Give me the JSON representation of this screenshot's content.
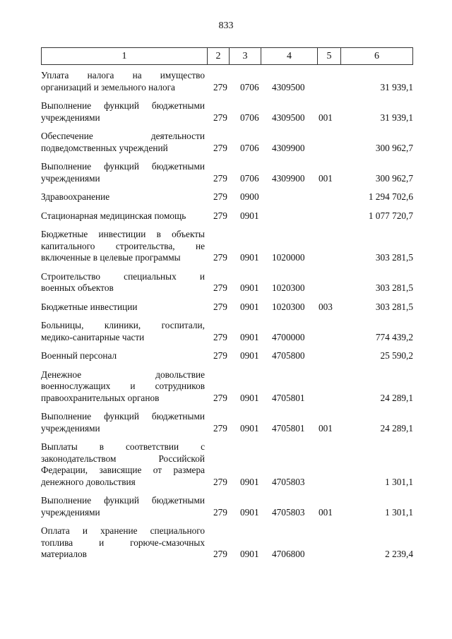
{
  "page_number": "833",
  "header": [
    "1",
    "2",
    "3",
    "4",
    "5",
    "6"
  ],
  "rows": [
    {
      "lines": [
        "Уплата налога на имущество",
        "организаций и земельного налога"
      ],
      "c2": "279",
      "c3": "0706",
      "c4": "4309500",
      "c5": "",
      "c6": "31 939,1"
    },
    {
      "lines": [
        "Выполнение функций бюджетными",
        "учреждениями"
      ],
      "c2": "279",
      "c3": "0706",
      "c4": "4309500",
      "c5": "001",
      "c6": "31 939,1"
    },
    {
      "lines": [
        "Обеспечение деятельности",
        "подведомственных учреждений"
      ],
      "c2": "279",
      "c3": "0706",
      "c4": "4309900",
      "c5": "",
      "c6": "300 962,7"
    },
    {
      "lines": [
        "Выполнение функций бюджетными",
        "учреждениями"
      ],
      "c2": "279",
      "c3": "0706",
      "c4": "4309900",
      "c5": "001",
      "c6": "300 962,7"
    },
    {
      "lines": [
        "Здравоохранение"
      ],
      "c2": "279",
      "c3": "0900",
      "c4": "",
      "c5": "",
      "c6": "1 294 702,6"
    },
    {
      "lines": [
        "Стационарная медицинская помощь"
      ],
      "c2": "279",
      "c3": "0901",
      "c4": "",
      "c5": "",
      "c6": "1 077 720,7"
    },
    {
      "lines": [
        "Бюджетные инвестиции в объекты",
        "капитального строительства, не",
        "включенные в целевые программы"
      ],
      "c2": "279",
      "c3": "0901",
      "c4": "1020000",
      "c5": "",
      "c6": "303 281,5"
    },
    {
      "lines": [
        "Строительство специальных и",
        "военных объектов"
      ],
      "c2": "279",
      "c3": "0901",
      "c4": "1020300",
      "c5": "",
      "c6": "303 281,5"
    },
    {
      "lines": [
        "Бюджетные инвестиции"
      ],
      "c2": "279",
      "c3": "0901",
      "c4": "1020300",
      "c5": "003",
      "c6": "303 281,5"
    },
    {
      "lines": [
        "Больницы, клиники, госпитали,",
        "медико-санитарные части"
      ],
      "c2": "279",
      "c3": "0901",
      "c4": "4700000",
      "c5": "",
      "c6": "774 439,2"
    },
    {
      "lines": [
        "Военный персонал"
      ],
      "c2": "279",
      "c3": "0901",
      "c4": "4705800",
      "c5": "",
      "c6": "25 590,2"
    },
    {
      "lines": [
        "Денежное довольствие",
        "военнослужащих и сотрудников",
        "правоохранительных органов"
      ],
      "c2": "279",
      "c3": "0901",
      "c4": "4705801",
      "c5": "",
      "c6": "24 289,1"
    },
    {
      "lines": [
        "Выполнение функций бюджетными",
        "учреждениями"
      ],
      "c2": "279",
      "c3": "0901",
      "c4": "4705801",
      "c5": "001",
      "c6": "24 289,1"
    },
    {
      "lines": [
        "Выплаты в соответствии с",
        "законодательством Российской",
        "Федерации, зависящие от размера",
        "денежного довольствия"
      ],
      "c2": "279",
      "c3": "0901",
      "c4": "4705803",
      "c5": "",
      "c6": "1 301,1"
    },
    {
      "lines": [
        "Выполнение функций бюджетными",
        "учреждениями"
      ],
      "c2": "279",
      "c3": "0901",
      "c4": "4705803",
      "c5": "001",
      "c6": "1 301,1"
    },
    {
      "lines": [
        "Оплата и хранение специального",
        "топлива и горюче-смазочных",
        "материалов"
      ],
      "c2": "279",
      "c3": "0901",
      "c4": "4706800",
      "c5": "",
      "c6": "2 239,4"
    }
  ]
}
